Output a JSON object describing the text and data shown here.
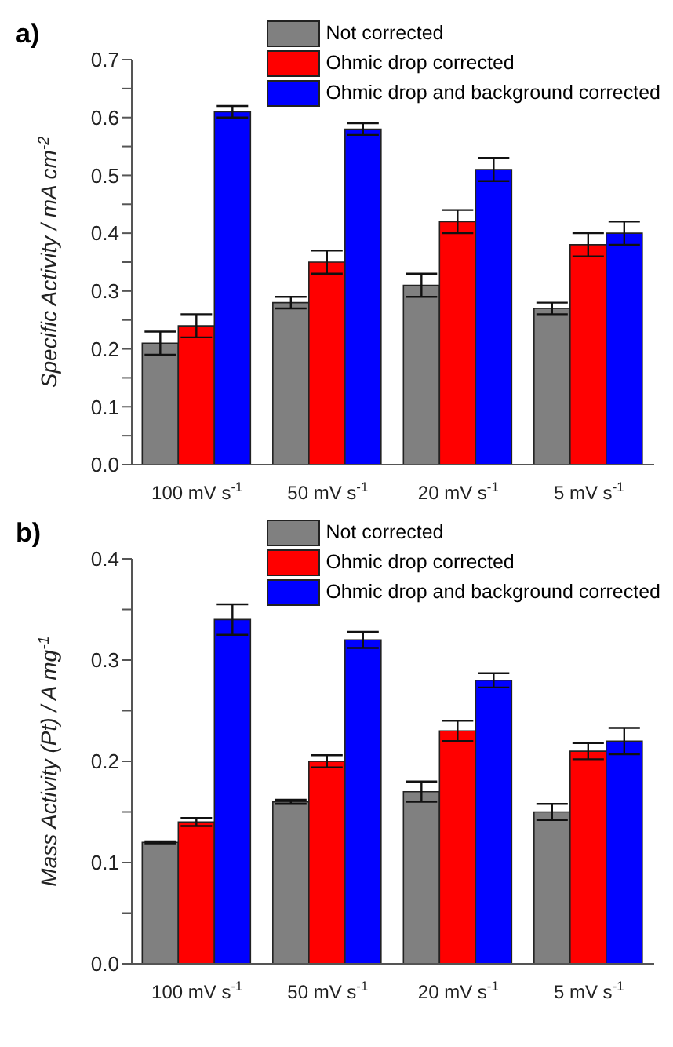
{
  "chart_data": [
    {
      "type": "bar",
      "title": "a)",
      "ylabel": "Specific Activity / mA cm$^{-2}$",
      "categories": [
        "100 mV s$^{-1}$",
        "50 mV s$^{-1}$",
        "20 mV s$^{-1}$",
        "5 mV s$^{-1}$"
      ],
      "series": [
        {
          "name": "Not corrected",
          "color": "#808080",
          "values": [
            0.21,
            0.28,
            0.31,
            0.27
          ],
          "errors": [
            0.02,
            0.01,
            0.02,
            0.01
          ]
        },
        {
          "name": "Ohmic drop corrected",
          "color": "#ff0000",
          "values": [
            0.24,
            0.35,
            0.42,
            0.38
          ],
          "errors": [
            0.02,
            0.02,
            0.02,
            0.02
          ]
        },
        {
          "name": "Ohmic drop and background corrected",
          "color": "#0000ff",
          "values": [
            0.61,
            0.58,
            0.51,
            0.4
          ],
          "errors": [
            0.01,
            0.01,
            0.02,
            0.02
          ]
        }
      ],
      "ylim": [
        0,
        0.7
      ],
      "yticks": [
        {
          "value": 0,
          "label": "0.0"
        },
        {
          "value": 0.05,
          "label": null
        },
        0.1,
        {
          "value": 0.15,
          "label": null
        },
        0.2,
        {
          "value": 0.25,
          "label": null
        },
        0.3,
        {
          "value": 0.35,
          "label": null
        },
        0.4,
        {
          "value": 0.45,
          "label": null
        },
        0.5,
        {
          "value": 0.55,
          "label": null
        },
        0.6,
        {
          "value": 0.65,
          "label": null
        },
        0.7
      ],
      "legend": "top right",
      "grid": false
    },
    {
      "type": "bar",
      "title": "b)",
      "ylabel": "Mass Activity (Pt) / A mg$^{-1}$",
      "categories": [
        "100 mV s$^{-1}$",
        "50 mV s$^{-1}$",
        "20 mV s$^{-1}$",
        "5 mV s$^{-1}$"
      ],
      "series": [
        {
          "name": "Not corrected",
          "color": "#808080",
          "values": [
            0.12,
            0.16,
            0.17,
            0.15
          ],
          "errors": [
            0.001,
            0.002,
            0.01,
            0.008
          ]
        },
        {
          "name": "Ohmic drop corrected",
          "color": "#ff0000",
          "values": [
            0.14,
            0.2,
            0.23,
            0.21
          ],
          "errors": [
            0.004,
            0.006,
            0.01,
            0.008
          ]
        },
        {
          "name": "Ohmic drop and background corrected",
          "color": "#0000ff",
          "values": [
            0.34,
            0.32,
            0.28,
            0.22
          ],
          "errors": [
            0.015,
            0.008,
            0.007,
            0.013
          ]
        }
      ],
      "ylim": [
        0,
        0.4
      ],
      "yticks": [
        {
          "value": 0,
          "label": "0.0"
        },
        {
          "value": 0.05,
          "label": null
        },
        0.1,
        {
          "value": 0.15,
          "label": null
        },
        0.2,
        {
          "value": 0.25,
          "label": null
        },
        0.3,
        {
          "value": 0.35,
          "label": null
        },
        0.4
      ],
      "legend": "top right",
      "grid": false
    }
  ]
}
